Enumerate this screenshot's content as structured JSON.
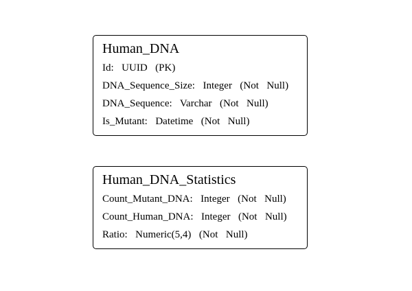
{
  "entities": [
    {
      "name": "Human_DNA",
      "attributes": [
        "Id:  UUID  (PK)",
        "DNA_Sequence_Size:  Integer  (Not  Null)",
        "DNA_Sequence:  Varchar  (Not  Null)",
        "Is_Mutant:  Datetime  (Not  Null)"
      ]
    },
    {
      "name": "Human_DNA_Statistics",
      "attributes": [
        "Count_Mutant_DNA:  Integer  (Not  Null)",
        "Count_Human_DNA:  Integer  (Not  Null)",
        "Ratio:  Numeric(5,4)  (Not  Null)"
      ]
    }
  ]
}
